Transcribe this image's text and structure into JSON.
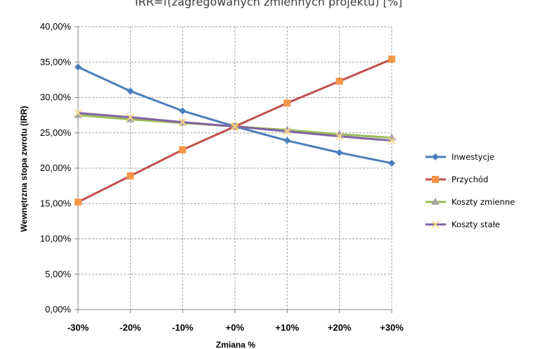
{
  "chart_data": {
    "type": "line",
    "title": "IRR=f(zagregowanych zmiennych projektu) [%]",
    "xlabel": "Zmiana %",
    "ylabel": "Wewnętrzna stopa zwrotu (IRR)",
    "categories": [
      "-30%",
      "-20%",
      "-10%",
      "+0%",
      "+10%",
      "+20%",
      "+30%"
    ],
    "ylim": [
      0,
      40
    ],
    "yticks": [
      0,
      5,
      10,
      15,
      20,
      25,
      30,
      35,
      40
    ],
    "ytick_labels": [
      "0,00%",
      "5,00%",
      "10,00%",
      "15,00%",
      "20,00%",
      "25,00%",
      "30,00%",
      "35,00%",
      "40,00%"
    ],
    "grid": true,
    "legend_position": "right",
    "series": [
      {
        "name": "Inwestycje",
        "color": "#4a7ebb",
        "marker": "diamond",
        "values": [
          34.3,
          30.9,
          28.1,
          25.9,
          23.9,
          22.2,
          20.7
        ]
      },
      {
        "name": "Przychód",
        "color": "#c0504d",
        "marker_color": "#f79646",
        "marker": "square",
        "values": [
          15.2,
          18.9,
          22.6,
          25.9,
          29.2,
          32.3,
          35.4
        ]
      },
      {
        "name": "Koszty zmienne",
        "color": "#9bbb59",
        "marker_color": "#a5a5a5",
        "marker": "triangle",
        "values": [
          27.5,
          26.9,
          26.4,
          25.9,
          25.4,
          24.8,
          24.3
        ]
      },
      {
        "name": "Koszty stałe",
        "color": "#8064a2",
        "marker_color": "#f9d77e",
        "marker": "x",
        "values": [
          27.8,
          27.2,
          26.5,
          25.9,
          25.2,
          24.5,
          23.9
        ]
      }
    ]
  }
}
